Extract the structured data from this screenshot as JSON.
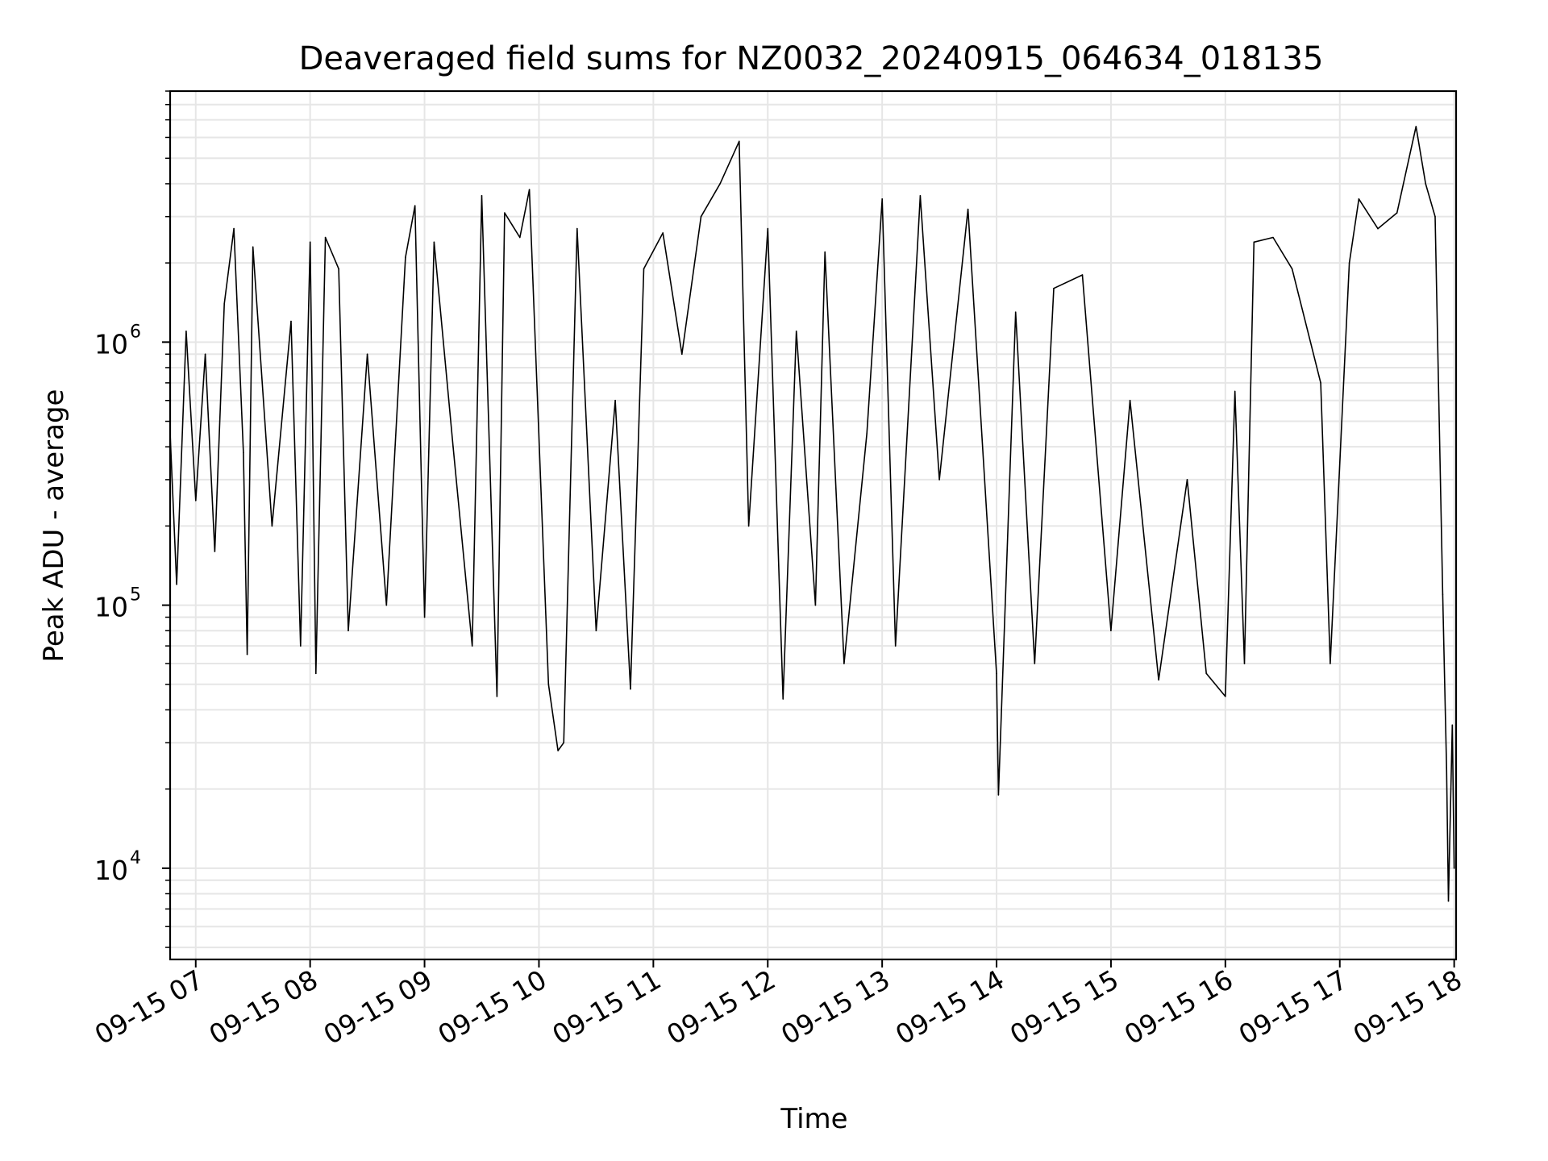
{
  "chart_data": {
    "type": "line",
    "title": "Deaveraged field sums for NZ0032_20240915_064634_018135",
    "xlabel": "Time",
    "ylabel": "Peak ADU - average",
    "x_ticks": [
      "09-15 07",
      "09-15 08",
      "09-15 09",
      "09-15 10",
      "09-15 11",
      "09-15 12",
      "09-15 13",
      "09-15 14",
      "09-15 15",
      "09-15 16",
      "09-15 17",
      "09-15 18"
    ],
    "y_ticks": [
      {
        "base": "10",
        "exp": "4",
        "value": 10000
      },
      {
        "base": "10",
        "exp": "5",
        "value": 100000
      },
      {
        "base": "10",
        "exp": "6",
        "value": 1000000
      }
    ],
    "x_range": [
      "2024-09-15T06:46:34",
      "2024-09-15T18:01:00"
    ],
    "ylim": [
      4500,
      9000000
    ],
    "y_scale": "log",
    "grid": true,
    "colors": {
      "line": "#000000",
      "grid": "#e6e6e6"
    },
    "series": [
      {
        "points": [
          [
            "2024-09-15T06:46:34",
            450000
          ],
          [
            "2024-09-15T06:50:00",
            120000
          ],
          [
            "2024-09-15T06:55:00",
            1100000
          ],
          [
            "2024-09-15T07:00:00",
            250000
          ],
          [
            "2024-09-15T07:05:00",
            900000
          ],
          [
            "2024-09-15T07:10:00",
            160000
          ],
          [
            "2024-09-15T07:15:00",
            1400000
          ],
          [
            "2024-09-15T07:20:00",
            2700000
          ],
          [
            "2024-09-15T07:25:00",
            380000
          ],
          [
            "2024-09-15T07:27:00",
            65000
          ],
          [
            "2024-09-15T07:30:00",
            2300000
          ],
          [
            "2024-09-15T07:40:00",
            200000
          ],
          [
            "2024-09-15T07:50:00",
            1200000
          ],
          [
            "2024-09-15T07:55:00",
            70000
          ],
          [
            "2024-09-15T08:00:00",
            2400000
          ],
          [
            "2024-09-15T08:03:00",
            55000
          ],
          [
            "2024-09-15T08:08:00",
            2500000
          ],
          [
            "2024-09-15T08:15:00",
            1900000
          ],
          [
            "2024-09-15T08:20:00",
            80000
          ],
          [
            "2024-09-15T08:30:00",
            900000
          ],
          [
            "2024-09-15T08:40:00",
            100000
          ],
          [
            "2024-09-15T08:50:00",
            2100000
          ],
          [
            "2024-09-15T08:55:00",
            3300000
          ],
          [
            "2024-09-15T09:00:00",
            90000
          ],
          [
            "2024-09-15T09:05:00",
            2400000
          ],
          [
            "2024-09-15T09:15:00",
            400000
          ],
          [
            "2024-09-15T09:25:00",
            70000
          ],
          [
            "2024-09-15T09:30:00",
            3600000
          ],
          [
            "2024-09-15T09:38:00",
            45000
          ],
          [
            "2024-09-15T09:42:00",
            3100000
          ],
          [
            "2024-09-15T09:50:00",
            2500000
          ],
          [
            "2024-09-15T09:55:00",
            3800000
          ],
          [
            "2024-09-15T10:05:00",
            50000
          ],
          [
            "2024-09-15T10:10:00",
            28000
          ],
          [
            "2024-09-15T10:13:00",
            30000
          ],
          [
            "2024-09-15T10:20:00",
            2700000
          ],
          [
            "2024-09-15T10:30:00",
            80000
          ],
          [
            "2024-09-15T10:40:00",
            600000
          ],
          [
            "2024-09-15T10:48:00",
            48000
          ],
          [
            "2024-09-15T10:55:00",
            1900000
          ],
          [
            "2024-09-15T11:05:00",
            2600000
          ],
          [
            "2024-09-15T11:15:00",
            900000
          ],
          [
            "2024-09-15T11:25:00",
            3000000
          ],
          [
            "2024-09-15T11:35:00",
            4000000
          ],
          [
            "2024-09-15T11:45:00",
            5800000
          ],
          [
            "2024-09-15T11:50:00",
            200000
          ],
          [
            "2024-09-15T12:00:00",
            2700000
          ],
          [
            "2024-09-15T12:08:00",
            44000
          ],
          [
            "2024-09-15T12:15:00",
            1100000
          ],
          [
            "2024-09-15T12:25:00",
            100000
          ],
          [
            "2024-09-15T12:30:00",
            2200000
          ],
          [
            "2024-09-15T12:40:00",
            60000
          ],
          [
            "2024-09-15T12:52:00",
            450000
          ],
          [
            "2024-09-15T13:00:00",
            3500000
          ],
          [
            "2024-09-15T13:07:00",
            70000
          ],
          [
            "2024-09-15T13:20:00",
            3600000
          ],
          [
            "2024-09-15T13:30:00",
            300000
          ],
          [
            "2024-09-15T13:45:00",
            3200000
          ],
          [
            "2024-09-15T14:00:00",
            55000
          ],
          [
            "2024-09-15T14:01:00",
            19000
          ],
          [
            "2024-09-15T14:10:00",
            1300000
          ],
          [
            "2024-09-15T14:20:00",
            60000
          ],
          [
            "2024-09-15T14:30:00",
            1600000
          ],
          [
            "2024-09-15T14:45:00",
            1800000
          ],
          [
            "2024-09-15T15:00:00",
            80000
          ],
          [
            "2024-09-15T15:10:00",
            600000
          ],
          [
            "2024-09-15T15:25:00",
            52000
          ],
          [
            "2024-09-15T15:40:00",
            300000
          ],
          [
            "2024-09-15T15:50:00",
            55000
          ],
          [
            "2024-09-15T16:00:00",
            45000
          ],
          [
            "2024-09-15T16:05:00",
            650000
          ],
          [
            "2024-09-15T16:10:00",
            60000
          ],
          [
            "2024-09-15T16:15:00",
            2400000
          ],
          [
            "2024-09-15T16:25:00",
            2500000
          ],
          [
            "2024-09-15T16:35:00",
            1900000
          ],
          [
            "2024-09-15T16:50:00",
            700000
          ],
          [
            "2024-09-15T16:55:00",
            60000
          ],
          [
            "2024-09-15T17:05:00",
            2000000
          ],
          [
            "2024-09-15T17:10:00",
            3500000
          ],
          [
            "2024-09-15T17:20:00",
            2700000
          ],
          [
            "2024-09-15T17:30:00",
            3100000
          ],
          [
            "2024-09-15T17:40:00",
            6600000
          ],
          [
            "2024-09-15T17:45:00",
            4000000
          ],
          [
            "2024-09-15T17:50:00",
            3000000
          ],
          [
            "2024-09-15T17:54:00",
            110000
          ],
          [
            "2024-09-15T17:56:00",
            24000
          ],
          [
            "2024-09-15T17:57:00",
            7500
          ],
          [
            "2024-09-15T17:59:00",
            35000
          ],
          [
            "2024-09-15T18:00:00",
            10000
          ]
        ]
      }
    ]
  }
}
